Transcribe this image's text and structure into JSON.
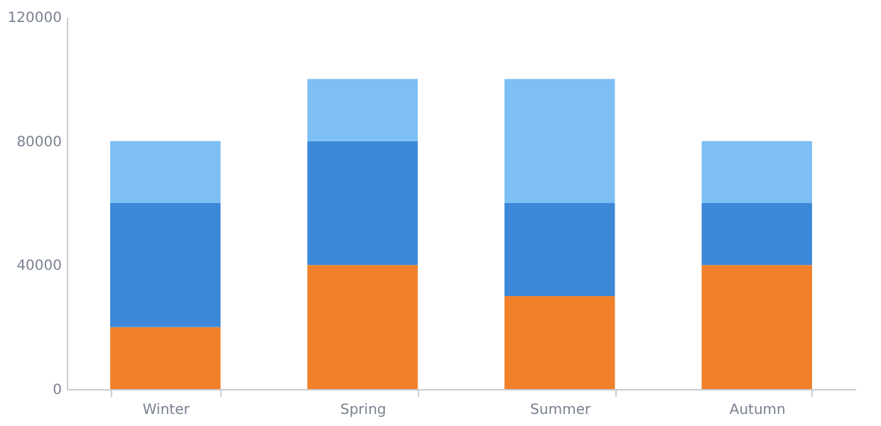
{
  "chart_data": {
    "type": "bar",
    "stacked": true,
    "categories": [
      "Winter",
      "Spring",
      "Summer",
      "Autumn"
    ],
    "series": [
      {
        "color": "#f0812a",
        "values": [
          20000,
          40000,
          30000,
          40000
        ]
      },
      {
        "color": "#3b88d8",
        "values": [
          40000,
          40000,
          30000,
          20000
        ]
      },
      {
        "color": "#7dbff5",
        "values": [
          20000,
          20000,
          40000,
          20000
        ]
      }
    ],
    "ylim": [
      0,
      120000
    ],
    "yticks": [
      0,
      40000,
      80000,
      120000
    ],
    "grid": false,
    "legend": false
  }
}
